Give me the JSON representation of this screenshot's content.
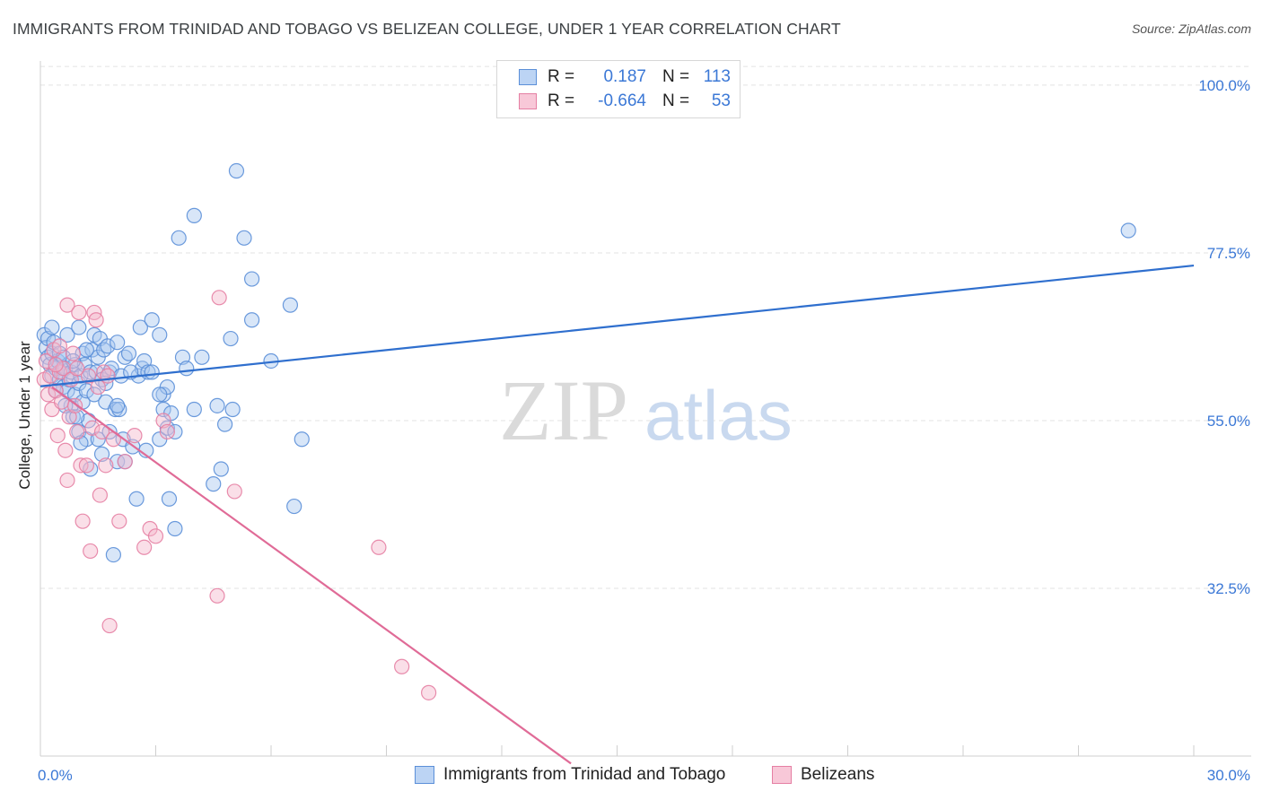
{
  "header": {
    "title": "IMMIGRANTS FROM TRINIDAD AND TOBAGO VS BELIZEAN COLLEGE, UNDER 1 YEAR CORRELATION CHART",
    "source": "Source: ZipAtlas.com"
  },
  "legend": {
    "rows": [
      {
        "r_label": "R =",
        "r_value": "0.187",
        "n_label": "N =",
        "n_value": "113"
      },
      {
        "r_label": "R =",
        "r_value": "-0.664",
        "n_label": "N =",
        "n_value": "53"
      }
    ]
  },
  "watermark": {
    "zip": "ZIP",
    "atlas": "atlas"
  },
  "colors": {
    "blue_fill": "#a9c8f0",
    "blue_stroke": "#5b8fd8",
    "blue_line": "#2f6fce",
    "pink_fill": "#f5b8cc",
    "pink_stroke": "#e57fa3",
    "pink_line": "#e06b97",
    "tick_label": "#3b78d6",
    "grid": "#e3e3e3"
  },
  "chart_data": {
    "type": "scatter",
    "title": "IMMIGRANTS FROM TRINIDAD AND TOBAGO VS BELIZEAN COLLEGE, UNDER 1 YEAR CORRELATION CHART",
    "xlabel": "",
    "ylabel": "College, Under 1 year",
    "xlim": [
      0,
      30
    ],
    "ylim": [
      10,
      103
    ],
    "x_tick_labels": [
      "0.0%",
      "30.0%"
    ],
    "y_ticks": [
      32.5,
      55.0,
      77.5,
      100.0
    ],
    "y_tick_labels": [
      "32.5%",
      "55.0%",
      "77.5%",
      "100.0%"
    ],
    "legend_position": "bottom",
    "series": [
      {
        "name": "Immigrants from Trinidad and Tobago",
        "color": "#5b8fd8",
        "trend": {
          "x": [
            0,
            30
          ],
          "y": [
            59.6,
            75.8
          ]
        },
        "points": [
          [
            0.1,
            66.5
          ],
          [
            0.15,
            64.8
          ],
          [
            0.2,
            63.5
          ],
          [
            0.2,
            66.0
          ],
          [
            0.25,
            62.5
          ],
          [
            0.3,
            64.0
          ],
          [
            0.3,
            61.0
          ],
          [
            0.35,
            65.5
          ],
          [
            0.4,
            62.0
          ],
          [
            0.45,
            63.0
          ],
          [
            0.5,
            60.5
          ],
          [
            0.5,
            64.0
          ],
          [
            0.55,
            61.5
          ],
          [
            0.6,
            63.5
          ],
          [
            0.6,
            59.5
          ],
          [
            0.65,
            62.0
          ],
          [
            0.7,
            66.5
          ],
          [
            0.7,
            59.0
          ],
          [
            0.75,
            60.5
          ],
          [
            0.8,
            57.0
          ],
          [
            0.8,
            61.5
          ],
          [
            0.85,
            55.5
          ],
          [
            0.9,
            62.5
          ],
          [
            0.9,
            58.5
          ],
          [
            1.0,
            67.5
          ],
          [
            1.0,
            60.0
          ],
          [
            1.0,
            53.5
          ],
          [
            1.05,
            61.0
          ],
          [
            1.1,
            64.0
          ],
          [
            1.1,
            57.5
          ],
          [
            1.15,
            62.5
          ],
          [
            1.2,
            59.0
          ],
          [
            1.2,
            52.5
          ],
          [
            1.25,
            55.0
          ],
          [
            1.3,
            61.5
          ],
          [
            1.3,
            48.5
          ],
          [
            1.35,
            64.5
          ],
          [
            1.4,
            58.5
          ],
          [
            1.4,
            66.5
          ],
          [
            1.45,
            61.5
          ],
          [
            1.5,
            63.5
          ],
          [
            1.5,
            52.5
          ],
          [
            1.55,
            66.0
          ],
          [
            1.6,
            60.5
          ],
          [
            1.6,
            50.5
          ],
          [
            1.65,
            64.5
          ],
          [
            1.7,
            57.5
          ],
          [
            1.75,
            65.0
          ],
          [
            1.8,
            61.5
          ],
          [
            1.8,
            53.5
          ],
          [
            1.85,
            62.0
          ],
          [
            1.9,
            37.0
          ],
          [
            1.95,
            56.5
          ],
          [
            2.0,
            65.5
          ],
          [
            2.0,
            49.5
          ],
          [
            2.05,
            56.5
          ],
          [
            2.1,
            61.0
          ],
          [
            2.15,
            52.5
          ],
          [
            2.2,
            63.5
          ],
          [
            2.2,
            49.5
          ],
          [
            2.3,
            64.0
          ],
          [
            2.4,
            51.5
          ],
          [
            2.5,
            44.5
          ],
          [
            2.55,
            61.0
          ],
          [
            2.6,
            67.5
          ],
          [
            2.65,
            62.0
          ],
          [
            2.7,
            63.0
          ],
          [
            2.75,
            51.0
          ],
          [
            2.8,
            61.5
          ],
          [
            2.9,
            61.5
          ],
          [
            2.9,
            68.5
          ],
          [
            3.1,
            52.5
          ],
          [
            3.1,
            66.5
          ],
          [
            3.2,
            58.5
          ],
          [
            3.2,
            56.5
          ],
          [
            3.3,
            59.5
          ],
          [
            3.3,
            54.0
          ],
          [
            3.35,
            44.5
          ],
          [
            3.4,
            56.0
          ],
          [
            3.5,
            40.5
          ],
          [
            3.5,
            53.5
          ],
          [
            3.6,
            79.5
          ],
          [
            3.7,
            63.5
          ],
          [
            3.8,
            62.0
          ],
          [
            4.0,
            82.5
          ],
          [
            4.0,
            56.5
          ],
          [
            4.2,
            63.5
          ],
          [
            4.5,
            46.5
          ],
          [
            4.6,
            57.0
          ],
          [
            4.7,
            48.5
          ],
          [
            4.8,
            54.5
          ],
          [
            4.95,
            66.0
          ],
          [
            5.0,
            56.5
          ],
          [
            5.1,
            88.5
          ],
          [
            5.3,
            79.5
          ],
          [
            5.5,
            74.0
          ],
          [
            5.5,
            68.5
          ],
          [
            6.0,
            63.0
          ],
          [
            6.5,
            70.5
          ],
          [
            6.6,
            43.5
          ],
          [
            6.8,
            52.5
          ],
          [
            28.3,
            80.5
          ],
          [
            3.1,
            58.5
          ],
          [
            1.05,
            52.0
          ],
          [
            0.95,
            55.5
          ],
          [
            2.35,
            61.5
          ],
          [
            0.4,
            59.0
          ],
          [
            0.65,
            57.0
          ],
          [
            1.7,
            60.0
          ],
          [
            0.3,
            67.5
          ],
          [
            1.2,
            64.5
          ],
          [
            2.0,
            57.0
          ],
          [
            0.85,
            63.0
          ]
        ]
      },
      {
        "name": "Belizeans",
        "color": "#e57fa3",
        "trend": {
          "x": [
            0.3,
            13.8
          ],
          "y": [
            59.5,
            9.0
          ]
        },
        "points": [
          [
            0.1,
            60.5
          ],
          [
            0.15,
            63.0
          ],
          [
            0.2,
            58.5
          ],
          [
            0.25,
            61.0
          ],
          [
            0.3,
            56.5
          ],
          [
            0.35,
            64.5
          ],
          [
            0.4,
            59.0
          ],
          [
            0.45,
            53.0
          ],
          [
            0.5,
            65.0
          ],
          [
            0.5,
            61.5
          ],
          [
            0.55,
            57.5
          ],
          [
            0.6,
            62.0
          ],
          [
            0.65,
            51.0
          ],
          [
            0.7,
            47.0
          ],
          [
            0.7,
            70.5
          ],
          [
            0.75,
            55.5
          ],
          [
            0.8,
            60.5
          ],
          [
            0.85,
            64.0
          ],
          [
            0.9,
            57.0
          ],
          [
            0.95,
            53.5
          ],
          [
            1.0,
            69.5
          ],
          [
            1.05,
            49.0
          ],
          [
            1.1,
            41.5
          ],
          [
            1.2,
            49.0
          ],
          [
            1.25,
            61.0
          ],
          [
            1.3,
            37.5
          ],
          [
            1.35,
            54.0
          ],
          [
            1.4,
            69.5
          ],
          [
            1.5,
            59.5
          ],
          [
            1.55,
            45.0
          ],
          [
            1.6,
            53.5
          ],
          [
            1.65,
            61.5
          ],
          [
            1.7,
            49.0
          ],
          [
            1.75,
            61.0
          ],
          [
            1.8,
            27.5
          ],
          [
            1.9,
            52.5
          ],
          [
            2.05,
            41.5
          ],
          [
            2.2,
            49.5
          ],
          [
            2.45,
            53.0
          ],
          [
            2.7,
            38.0
          ],
          [
            2.85,
            40.5
          ],
          [
            3.0,
            39.5
          ],
          [
            3.2,
            55.0
          ],
          [
            3.3,
            53.5
          ],
          [
            4.65,
            71.5
          ],
          [
            4.6,
            31.5
          ],
          [
            5.05,
            45.5
          ],
          [
            8.8,
            38.0
          ],
          [
            9.4,
            22.0
          ],
          [
            10.1,
            18.5
          ],
          [
            0.4,
            62.5
          ],
          [
            0.95,
            62.0
          ],
          [
            1.45,
            68.5
          ]
        ]
      }
    ]
  }
}
